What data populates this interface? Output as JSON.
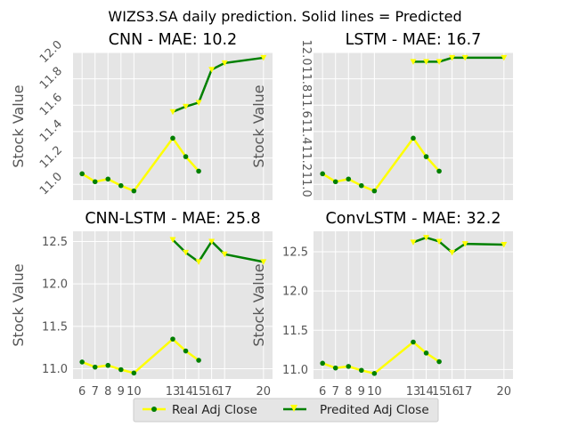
{
  "figure": {
    "suptitle": "WIZS3.SA daily prediction. Solid lines = Predicted"
  },
  "legend": {
    "placement": "bottom-center",
    "real_label": "Real Adj Close",
    "pred_label": "Predited Adj Close"
  },
  "colors": {
    "axes_bg": "#e5e5e5",
    "grid": "#ffffff",
    "real_line": "#ffff00",
    "real_marker": "#008000",
    "pred_line": "#008000",
    "pred_marker": "#ffff00"
  },
  "chart_data": [
    {
      "type": "line",
      "title": "CNN - MAE: 10.2",
      "xlabel": "",
      "ylabel": "Stock Value",
      "xlim": [
        5.3,
        20.7
      ],
      "ylim": [
        10.88,
        12.0
      ],
      "ytick_format": 1,
      "yticks": [
        11.0,
        11.2,
        11.4,
        11.6,
        11.8,
        12.0
      ],
      "ytick_rotation": 45,
      "xticks": [],
      "grid": true,
      "series": [
        {
          "name": "Real Adj Close",
          "x": [
            6,
            7,
            8,
            9,
            10,
            13,
            14,
            15
          ],
          "values": [
            11.08,
            11.02,
            11.04,
            10.99,
            10.95,
            11.35,
            11.21,
            11.1
          ]
        },
        {
          "name": "Predited Adj Close",
          "x": [
            13,
            14,
            15,
            16,
            17,
            20
          ],
          "values": [
            11.55,
            11.59,
            11.62,
            11.87,
            11.92,
            11.96
          ]
        }
      ]
    },
    {
      "type": "line",
      "title": "LSTM - MAE: 16.7",
      "xlabel": "",
      "ylabel": "Stock Value",
      "xlim": [
        5.3,
        20.7
      ],
      "ylim": [
        10.88,
        12.0
      ],
      "ytick_format": 1,
      "yticks": [
        11.0,
        11.2,
        11.4,
        11.6,
        11.8,
        12.0
      ],
      "ytick_rotation": -90,
      "xticks": [],
      "grid": true,
      "series": [
        {
          "name": "Real Adj Close",
          "x": [
            6,
            7,
            8,
            9,
            10,
            13,
            14,
            15
          ],
          "values": [
            11.08,
            11.02,
            11.04,
            10.99,
            10.95,
            11.35,
            11.21,
            11.1
          ]
        },
        {
          "name": "Predited Adj Close",
          "x": [
            13,
            14,
            15,
            16,
            17,
            20
          ],
          "values": [
            11.93,
            11.93,
            11.93,
            11.96,
            11.96,
            11.96
          ]
        }
      ]
    },
    {
      "type": "line",
      "title": "CNN-LSTM - MAE: 25.8",
      "xlabel": "",
      "ylabel": "Stock Value",
      "xlim": [
        5.3,
        20.7
      ],
      "ylim": [
        10.88,
        12.62
      ],
      "ytick_format": 1,
      "yticks": [
        11.0,
        11.5,
        12.0,
        12.5
      ],
      "ytick_rotation": 0,
      "xticks": [
        6,
        7,
        8,
        9,
        10,
        13,
        14,
        15,
        16,
        17,
        20
      ],
      "grid": true,
      "series": [
        {
          "name": "Real Adj Close",
          "x": [
            6,
            7,
            8,
            9,
            10,
            13,
            14,
            15
          ],
          "values": [
            11.08,
            11.02,
            11.04,
            10.99,
            10.95,
            11.35,
            11.21,
            11.1
          ]
        },
        {
          "name": "Predited Adj Close",
          "x": [
            13,
            14,
            15,
            16,
            17,
            20
          ],
          "values": [
            12.52,
            12.37,
            12.26,
            12.5,
            12.35,
            12.26
          ]
        }
      ]
    },
    {
      "type": "line",
      "title": "ConvLSTM - MAE: 32.2",
      "xlabel": "",
      "ylabel": "Stock Value",
      "xlim": [
        5.3,
        20.7
      ],
      "ylim": [
        10.88,
        12.76
      ],
      "ytick_format": 1,
      "yticks": [
        11.0,
        11.5,
        12.0,
        12.5
      ],
      "ytick_rotation": 0,
      "xticks": [
        6,
        7,
        8,
        9,
        10,
        13,
        14,
        15,
        16,
        17,
        20
      ],
      "grid": true,
      "series": [
        {
          "name": "Real Adj Close",
          "x": [
            6,
            7,
            8,
            9,
            10,
            13,
            14,
            15
          ],
          "values": [
            11.08,
            11.02,
            11.04,
            10.99,
            10.95,
            11.35,
            11.21,
            11.1
          ]
        },
        {
          "name": "Predited Adj Close",
          "x": [
            13,
            14,
            15,
            16,
            17,
            20
          ],
          "values": [
            12.62,
            12.68,
            12.63,
            12.49,
            12.6,
            12.59
          ]
        }
      ]
    }
  ]
}
